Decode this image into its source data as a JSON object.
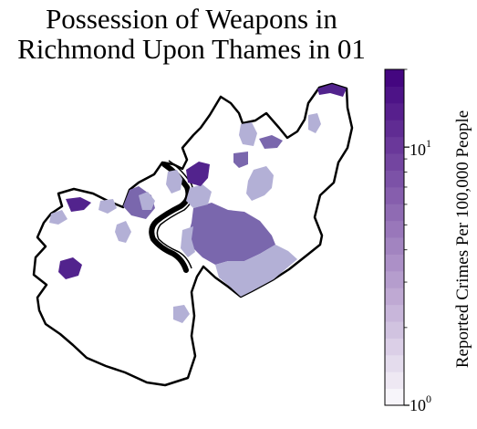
{
  "title_lines": [
    "Possession of Weapons in",
    "Richmond Upon Thames in 01"
  ],
  "colorbar": {
    "label": "Reported Crimes Per 100,000 People",
    "scale": "log",
    "range": [
      1,
      20
    ],
    "ticks": [
      {
        "base": "10",
        "exp": "0",
        "value": 1
      },
      {
        "base": "10",
        "exp": "1",
        "value": 10
      }
    ],
    "color_low": "#fcfbfd",
    "color_high": "#3f007d",
    "colormap": "Purples",
    "levels": 20
  }
}
